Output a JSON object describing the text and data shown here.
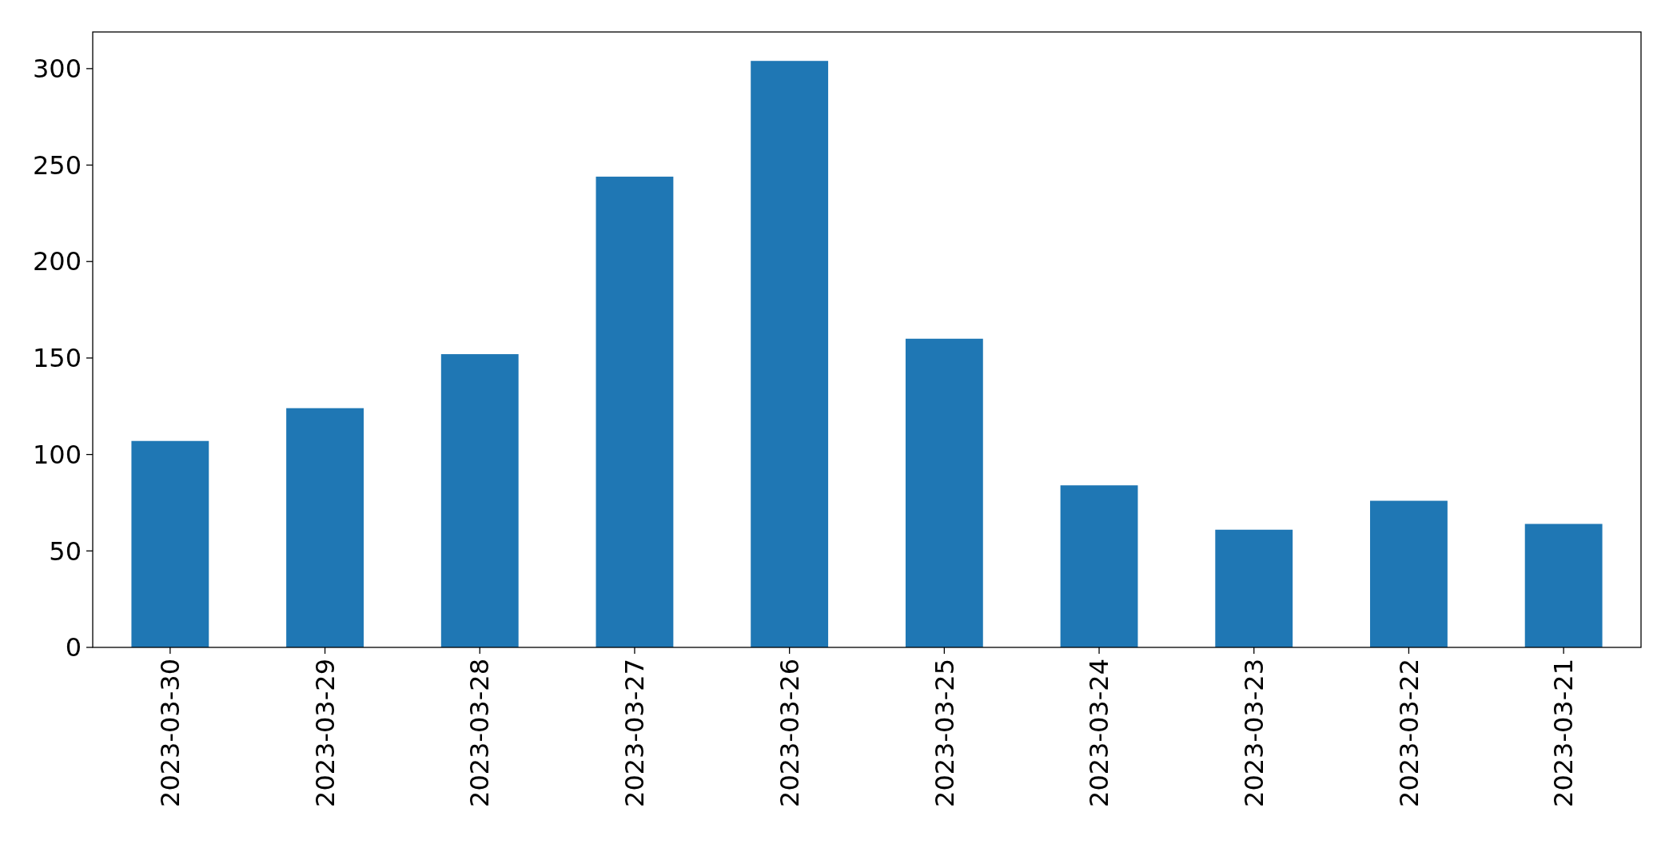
{
  "chart_data": {
    "type": "bar",
    "categories": [
      "2023-03-30",
      "2023-03-29",
      "2023-03-28",
      "2023-03-27",
      "2023-03-26",
      "2023-03-25",
      "2023-03-24",
      "2023-03-23",
      "2023-03-22",
      "2023-03-21"
    ],
    "values": [
      107,
      124,
      152,
      244,
      304,
      160,
      84,
      61,
      76,
      64
    ],
    "color": "#1f77b4",
    "ylim": [
      0,
      319
    ],
    "yticks": [
      0,
      50,
      100,
      150,
      200,
      250,
      300
    ],
    "grid": false
  }
}
